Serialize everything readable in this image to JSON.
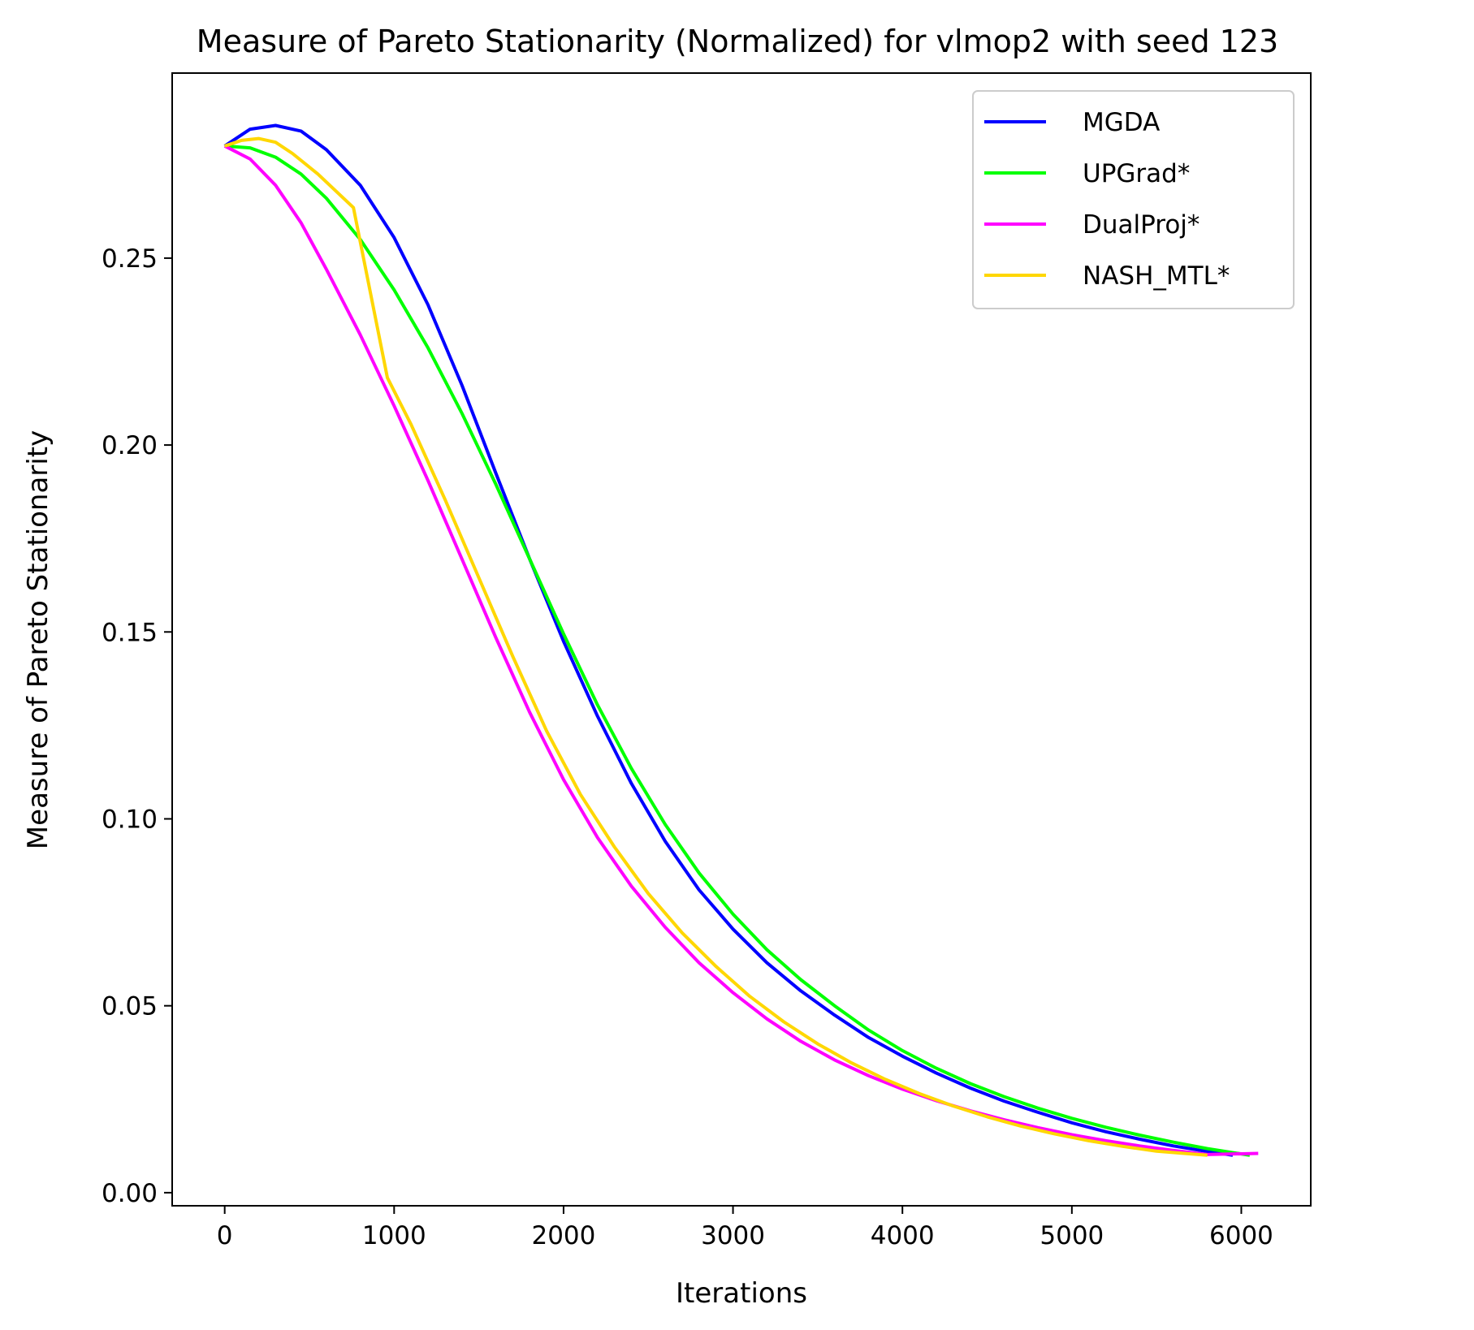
{
  "chart_data": {
    "type": "line",
    "title": "Measure of Pareto Stationarity (Normalized) for vlmop2 with seed 123",
    "xlabel": "Iterations",
    "ylabel": "Measure of Pareto Stationarity",
    "xlim": [
      -310,
      6410
    ],
    "ylim": [
      -0.0035,
      0.2995
    ],
    "xticks": [
      0,
      1000,
      2000,
      3000,
      4000,
      5000,
      6000
    ],
    "xtick_labels": [
      "0",
      "1000",
      "2000",
      "3000",
      "4000",
      "5000",
      "6000"
    ],
    "yticks": [
      0.0,
      0.05,
      0.1,
      0.15,
      0.2,
      0.25
    ],
    "ytick_labels": [
      "0.00",
      "0.05",
      "0.10",
      "0.15",
      "0.20",
      "0.25"
    ],
    "grid": false,
    "legend_position": "top-right",
    "series": [
      {
        "name": "MGDA",
        "color": "#0000ff",
        "x": [
          0,
          150,
          300,
          450,
          600,
          800,
          1000,
          1200,
          1400,
          1600,
          1800,
          2000,
          2200,
          2400,
          2600,
          2800,
          3000,
          3200,
          3400,
          3600,
          3800,
          4000,
          4200,
          4400,
          4600,
          4800,
          5000,
          5200,
          5400,
          5600,
          5800,
          5950
        ],
        "y": [
          0.28,
          0.2845,
          0.2855,
          0.284,
          0.279,
          0.2695,
          0.2555,
          0.2375,
          0.216,
          0.1925,
          0.1695,
          0.1475,
          0.1275,
          0.1095,
          0.094,
          0.081,
          0.0705,
          0.0615,
          0.054,
          0.0475,
          0.0415,
          0.0365,
          0.032,
          0.028,
          0.0245,
          0.0215,
          0.0187,
          0.0163,
          0.0143,
          0.0125,
          0.011,
          0.01
        ]
      },
      {
        "name": "UPGrad*",
        "color": "#00ff00",
        "x": [
          0,
          150,
          300,
          450,
          600,
          800,
          1000,
          1200,
          1400,
          1600,
          1800,
          2000,
          2200,
          2400,
          2600,
          2800,
          3000,
          3200,
          3400,
          3600,
          3800,
          4000,
          4200,
          4400,
          4600,
          4800,
          5000,
          5200,
          5400,
          5600,
          5800,
          6050
        ],
        "y": [
          0.28,
          0.2795,
          0.277,
          0.2725,
          0.266,
          0.255,
          0.2415,
          0.226,
          0.2085,
          0.1895,
          0.1695,
          0.1495,
          0.1305,
          0.1135,
          0.0985,
          0.0855,
          0.0745,
          0.065,
          0.057,
          0.05,
          0.0435,
          0.038,
          0.0333,
          0.0292,
          0.0257,
          0.0226,
          0.0199,
          0.0175,
          0.0154,
          0.0135,
          0.0118,
          0.01
        ]
      },
      {
        "name": "DualProj*",
        "color": "#ff00ff",
        "x": [
          0,
          150,
          300,
          450,
          600,
          800,
          1000,
          1200,
          1400,
          1600,
          1800,
          2000,
          2200,
          2400,
          2600,
          2800,
          3000,
          3200,
          3400,
          3600,
          3800,
          4000,
          4200,
          4400,
          4600,
          4800,
          5000,
          5200,
          5400,
          5600,
          5800,
          6100
        ],
        "y": [
          0.28,
          0.2765,
          0.2695,
          0.2595,
          0.247,
          0.2295,
          0.2105,
          0.1905,
          0.1695,
          0.1485,
          0.1285,
          0.1105,
          0.095,
          0.082,
          0.071,
          0.0615,
          0.0535,
          0.0465,
          0.0405,
          0.0355,
          0.0313,
          0.0277,
          0.0246,
          0.0219,
          0.0195,
          0.0174,
          0.0155,
          0.0139,
          0.0125,
          0.0113,
          0.0102,
          0.0105
        ]
      },
      {
        "name": "NASH_MTL*",
        "color": "#ffd700",
        "x": [
          0,
          100,
          200,
          300,
          400,
          550,
          760,
          960,
          1100,
          1300,
          1500,
          1700,
          1900,
          2100,
          2300,
          2500,
          2700,
          2900,
          3100,
          3300,
          3500,
          3700,
          3900,
          4100,
          4300,
          4500,
          4700,
          4900,
          5100,
          5300,
          5500,
          5800
        ],
        "y": [
          0.28,
          0.2815,
          0.282,
          0.281,
          0.278,
          0.2725,
          0.2635,
          0.218,
          0.2055,
          0.1855,
          0.1645,
          0.1435,
          0.1235,
          0.1065,
          0.0925,
          0.08,
          0.0695,
          0.0605,
          0.0525,
          0.0457,
          0.0398,
          0.0347,
          0.0303,
          0.0265,
          0.0232,
          0.0203,
          0.0178,
          0.0157,
          0.0139,
          0.0124,
          0.0111,
          0.01
        ]
      }
    ]
  }
}
